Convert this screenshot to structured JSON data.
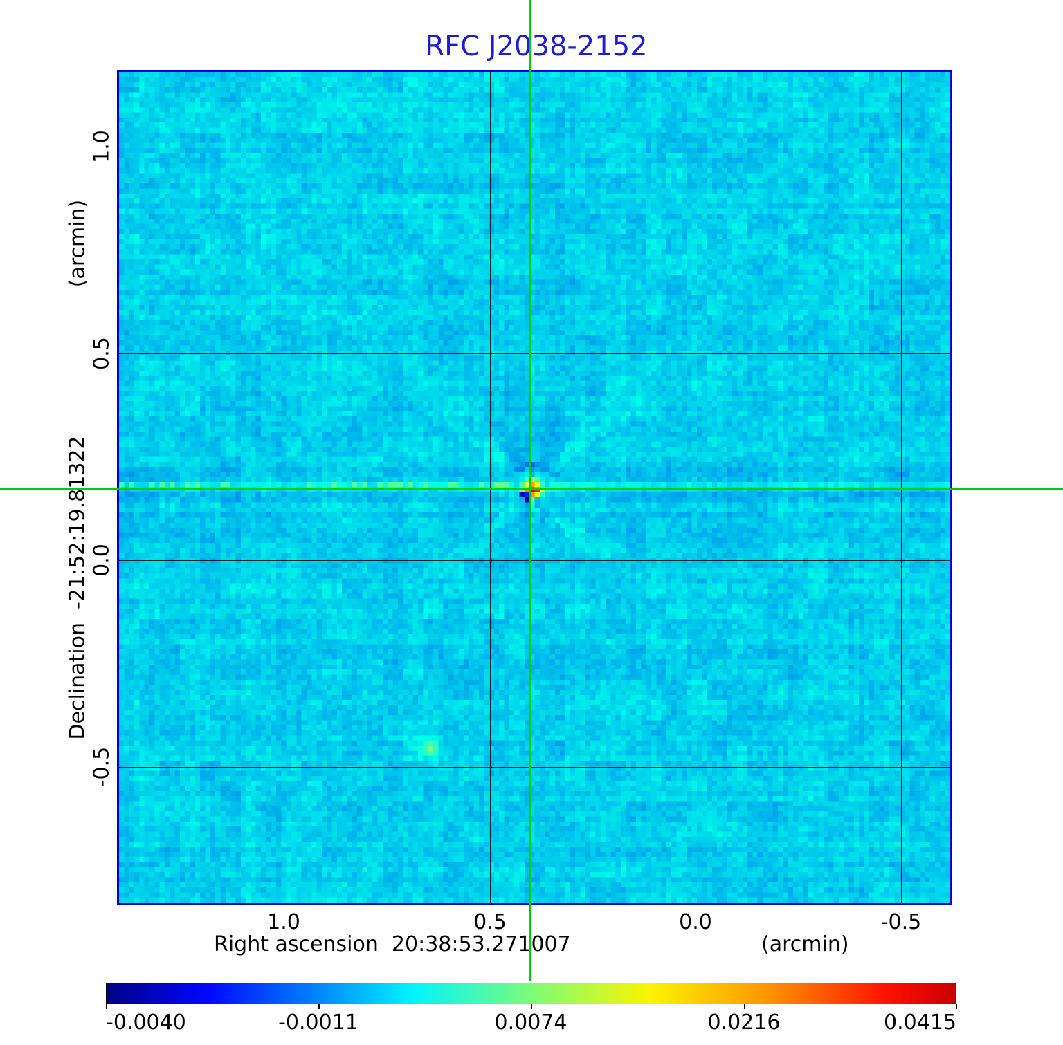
{
  "title": {
    "text": "RFC J2038-2152"
  },
  "colors": {
    "title": "#1c1cd8",
    "plot_border": "#0000dd",
    "grid_line": "#000000",
    "crosshair": "#00cc10",
    "background_sky": "#00cbe8"
  },
  "axes": {
    "x": {
      "title": "Right ascension  20:38:53.271007",
      "unit": "(arcmin)",
      "ticks": [
        "1.0",
        "0.5",
        "0.0",
        "-0.5"
      ]
    },
    "y": {
      "title": "Declination  -21:52:19.81322",
      "unit": "(arcmin)",
      "ticks": [
        "1.0",
        "0.5",
        "0.0",
        "-0.5"
      ]
    }
  },
  "colorbar": {
    "tick_labels": [
      "-0.0040",
      "-0.0011",
      "0.0074",
      "0.0216",
      "0.0415"
    ],
    "colormap": "jet"
  },
  "chart_data": {
    "type": "heatmap",
    "title": "RFC J2038-2152",
    "xlabel": "Right ascension 20:38:53.271007 (arcmin)",
    "ylabel": "Declination -21:52:19.81322 (arcmin)",
    "x_ticks_arcmin": [
      1.0,
      0.5,
      0.0,
      -0.5
    ],
    "y_ticks_arcmin": [
      1.0,
      0.5,
      0.0,
      -0.5
    ],
    "x_range_arcmin": [
      1.4,
      -0.62
    ],
    "y_range_arcmin": [
      -0.83,
      1.19
    ],
    "colormap": "jet",
    "colorbar_values": [
      -0.004,
      -0.0011,
      0.0074,
      0.0216,
      0.0415
    ],
    "crosshair_arcmin": {
      "x": 0.4,
      "y": 0.17
    },
    "source": {
      "x_arcmin": 0.4,
      "y_arcmin": 0.17,
      "peak_value": 0.0415
    },
    "secondary_feature_arcmin": {
      "x": 0.65,
      "y": -0.45
    },
    "background_level": 0.0,
    "grid": true,
    "legend_position": "none"
  },
  "render": {
    "seed": 20382152,
    "grid": 164,
    "base_p": 0.328,
    "noise": {
      "cell": 0.022,
      "patch": 0.016,
      "row": 0.01,
      "col": 0.007
    },
    "source_cell": {
      "col": 81,
      "row": 82
    },
    "row_band_offsets": {
      "78": -0.016,
      "79": -0.02,
      "80": -0.012,
      "81": 0.03,
      "82": 0.012,
      "83": -0.022,
      "84": -0.014,
      "87": -0.008,
      "88": -0.008
    },
    "source_pattern": {
      "dx0": -3,
      "dy0": -5,
      "rows": [
        [
          null,
          null,
          0.24,
          0.22,
          0.27,
          null,
          null
        ],
        [
          null,
          null,
          null,
          0.27,
          0.3,
          null,
          null
        ],
        [
          0.33,
          0.34,
          0.36,
          0.3,
          0.36,
          0.33,
          0.33
        ],
        [
          0.33,
          0.36,
          0.46,
          0.52,
          0.46,
          0.36,
          0.33
        ],
        [
          0.34,
          0.44,
          0.62,
          0.72,
          0.62,
          0.42,
          0.34
        ],
        [
          0.36,
          0.52,
          0.74,
          0.9,
          0.84,
          0.58,
          0.4
        ],
        [
          0.33,
          0.1,
          0.16,
          0.74,
          0.62,
          0.42,
          0.34
        ],
        [
          0.33,
          0.3,
          0.04,
          0.46,
          0.3,
          0.34,
          0.33
        ],
        [
          0.33,
          0.32,
          0.28,
          0.4,
          0.3,
          0.33,
          0.33
        ]
      ]
    },
    "blob_cell": {
      "col": 61,
      "row": 133,
      "amp": 0.16,
      "sigma2": 3.0,
      "center_p": 0.5
    }
  }
}
